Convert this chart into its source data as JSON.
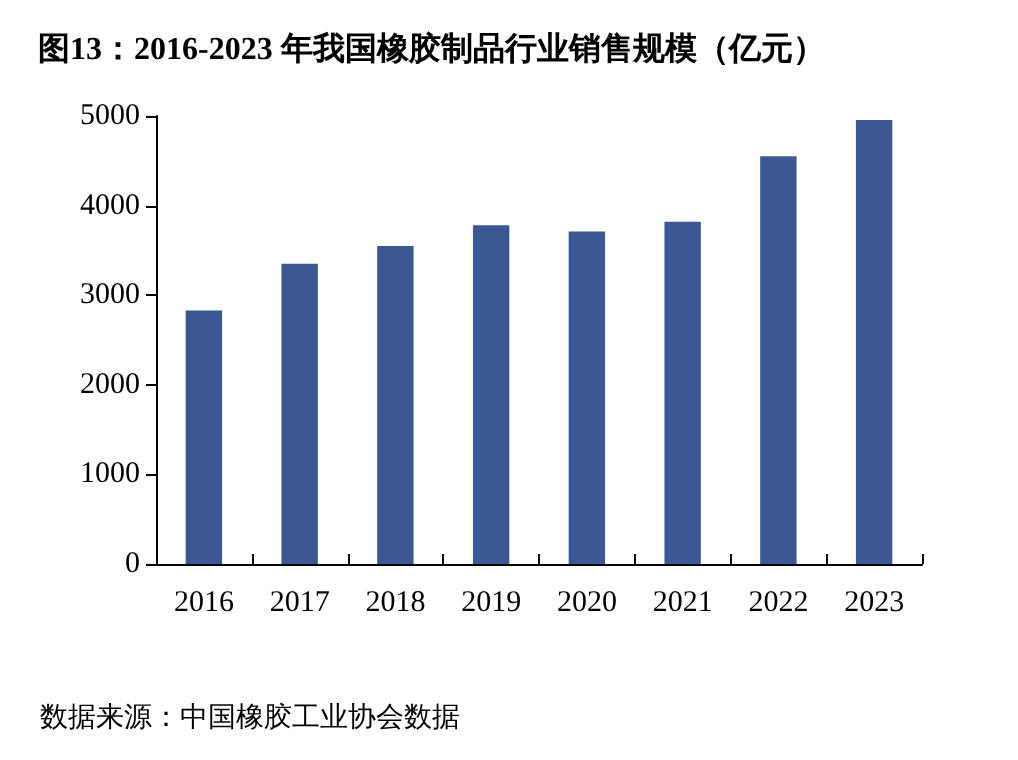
{
  "chart_data": {
    "type": "bar",
    "title": "图13：2016-2023 年我国橡胶制品行业销售规模（亿元）",
    "categories": [
      "2016",
      "2017",
      "2018",
      "2019",
      "2020",
      "2021",
      "2022",
      "2023"
    ],
    "values": [
      2830,
      3350,
      3550,
      3780,
      3710,
      3820,
      4550,
      4955
    ],
    "color": "#3b5894",
    "ylim": [
      0,
      5000
    ],
    "yticks": [
      0,
      1000,
      2000,
      3000,
      4000,
      5000
    ],
    "grid": false,
    "annotations": [
      "数据来源：中国橡胶工业协会数据"
    ]
  }
}
